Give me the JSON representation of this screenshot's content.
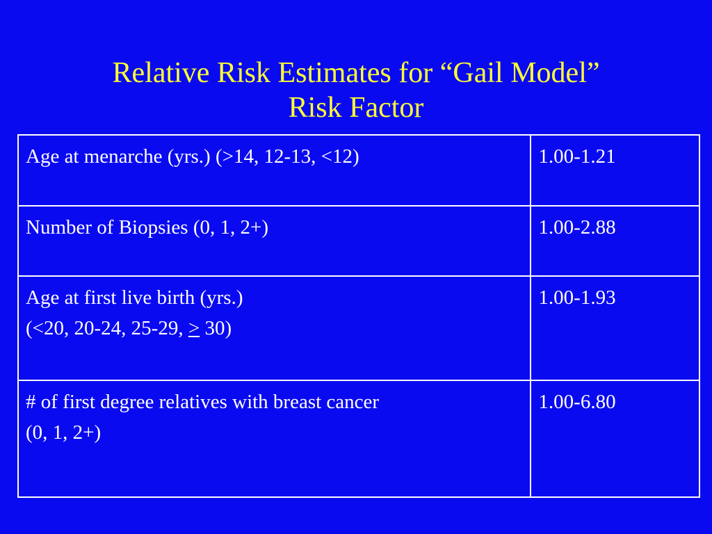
{
  "title": {
    "line1": "Relative Risk Estimates for “Gail Model”",
    "line2": "Risk Factor"
  },
  "table": {
    "rows": [
      {
        "factor_lines": [
          "Age at menarche (yrs.) (>14, 12-13, <12)"
        ],
        "value": "1.00-1.21"
      },
      {
        "factor_lines": [
          "Number of Biopsies (0, 1, 2+)"
        ],
        "value": "1.00-2.88"
      },
      {
        "factor_lines": [
          "Age at first live birth (yrs.)"
        ],
        "factor_line2_prefix": "(<20, 20-24, 25-29, ",
        "factor_line2_symbol": ">",
        "factor_line2_suffix": " 30)",
        "value": "1.00-1.93"
      },
      {
        "factor_lines": [
          "# of first degree relatives with breast cancer",
          "(0, 1, 2+)"
        ],
        "value": "1.00-6.80"
      }
    ]
  }
}
